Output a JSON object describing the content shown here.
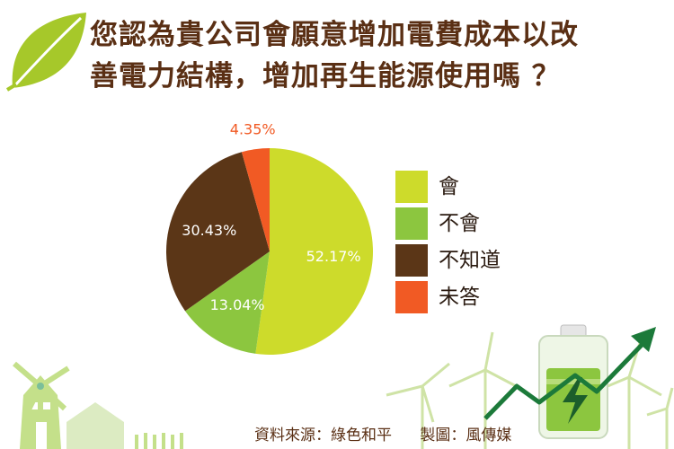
{
  "title": {
    "line1": "您認為貴公司會願意增加電費成本以改",
    "line2": "善電力結構，增加再生能源使用嗎 ？"
  },
  "colors": {
    "title": "#5a2f14",
    "leaf": "#a6c82a",
    "decor_green": "#a8cf4a",
    "arrow": "#1c7a3a"
  },
  "chart_data": {
    "type": "pie",
    "start_angle_deg": 0,
    "direction": "clockwise",
    "slices": [
      {
        "label": "會",
        "value": 52.17,
        "display": "52.17%",
        "color": "#cddb2b"
      },
      {
        "label": "不會",
        "value": 13.04,
        "display": "13.04%",
        "color": "#8cc63f"
      },
      {
        "label": "不知道",
        "value": 30.43,
        "display": "30.43%",
        "color": "#5b3617"
      },
      {
        "label": "未答",
        "value": 4.35,
        "display": "4.35%",
        "color": "#f15a24"
      }
    ],
    "legend_position": "right"
  },
  "footer": {
    "source": "資料來源：綠色和平",
    "credit": "製圖：風傳媒"
  },
  "icons": [
    "leaf-icon",
    "windmill-icon",
    "house-icon",
    "wind-turbine-icon",
    "battery-icon",
    "growth-arrow-icon"
  ]
}
